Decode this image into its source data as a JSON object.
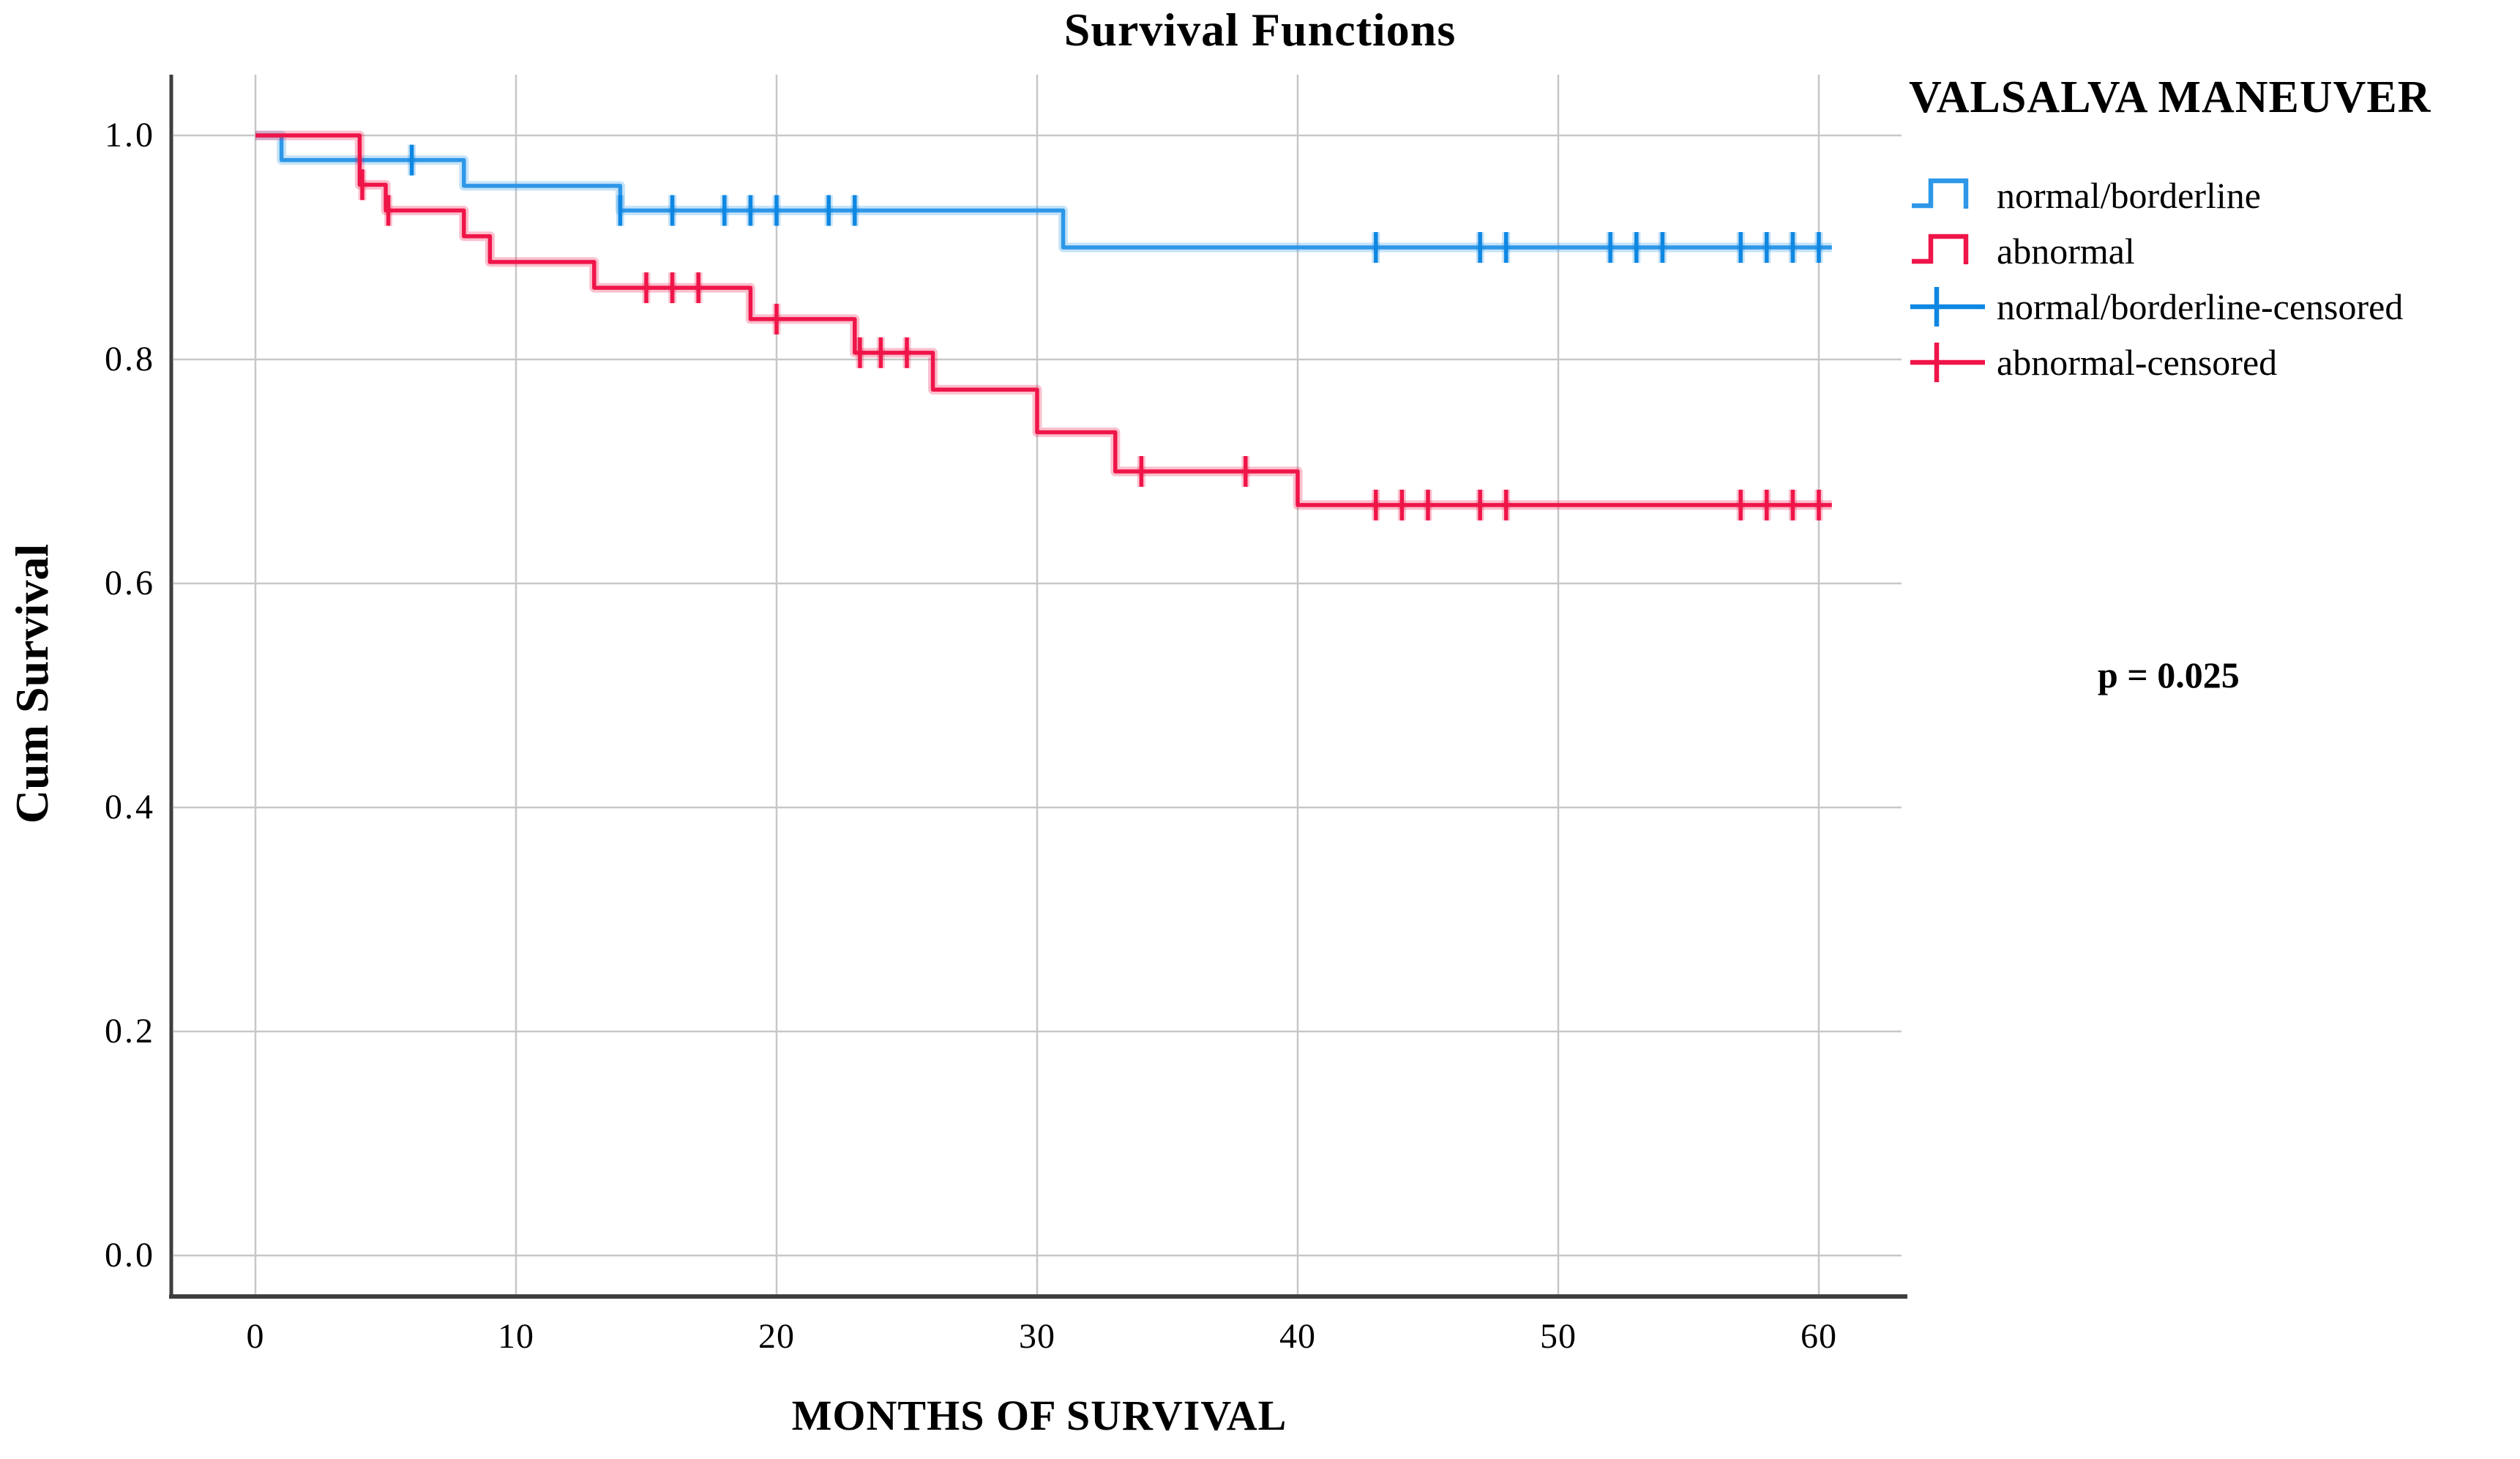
{
  "figure": {
    "title": "Survival Functions",
    "x_axis_title": "MONTHS OF SURVIVAL",
    "y_axis_title": "Cum Survival",
    "p_value_label": "p = 0.025"
  },
  "legend": {
    "title": "VALSALVA MANEUVER",
    "items": [
      {
        "label": "normal/borderline",
        "symbol": "step-line",
        "color": "#2d97e8"
      },
      {
        "label": "abnormal",
        "symbol": "step-line",
        "color": "#ef1549"
      },
      {
        "label": "normal/borderline-censored",
        "symbol": "plus-cross",
        "color": "#0e87e2"
      },
      {
        "label": "abnormal-censored",
        "symbol": "plus-cross",
        "color": "#ef1549"
      }
    ]
  },
  "chart_data": {
    "type": "line",
    "subtype": "kaplan-meier-step",
    "title": "Survival Functions",
    "xlabel": "MONTHS OF SURVIVAL",
    "ylabel": "Cum Survival",
    "xlim": [
      0,
      60
    ],
    "ylim": [
      0.0,
      1.0
    ],
    "x_ticks": [
      0,
      10,
      20,
      30,
      40,
      50,
      60
    ],
    "x_tick_labels": [
      "0",
      "10",
      "20",
      "30",
      "40",
      "50",
      "60"
    ],
    "y_ticks": [
      0.0,
      0.2,
      0.4,
      0.6,
      0.8,
      1.0
    ],
    "y_tick_labels": [
      "0.0",
      "0.2",
      "0.4",
      "0.6",
      "0.8",
      "1.0"
    ],
    "grid": true,
    "legend_position": "right",
    "annotations": [
      {
        "text": "p = 0.025",
        "x": 48,
        "y": 0.52
      }
    ],
    "grid_color": "#c7c7c7",
    "axis_color": "#3e3e3e",
    "series": [
      {
        "name": "normal/borderline",
        "color": "#2d97e8",
        "censor_color": "#0e87e2",
        "steps": [
          [
            0,
            1.0
          ],
          [
            1,
            0.978
          ],
          [
            8,
            0.955
          ],
          [
            14,
            0.933
          ],
          [
            31,
            0.9
          ]
        ],
        "end_x": 60.5,
        "censored": [
          [
            6,
            0.978
          ],
          [
            14,
            0.933
          ],
          [
            16,
            0.933
          ],
          [
            18,
            0.933
          ],
          [
            19,
            0.933
          ],
          [
            20,
            0.933
          ],
          [
            22,
            0.933
          ],
          [
            23,
            0.933
          ],
          [
            43,
            0.9
          ],
          [
            47,
            0.9
          ],
          [
            48,
            0.9
          ],
          [
            52,
            0.9
          ],
          [
            53,
            0.9
          ],
          [
            54,
            0.9
          ],
          [
            57,
            0.9
          ],
          [
            58,
            0.9
          ],
          [
            59,
            0.9
          ],
          [
            60,
            0.9
          ]
        ]
      },
      {
        "name": "abnormal",
        "color": "#ef1549",
        "censor_color": "#ef1549",
        "steps": [
          [
            0,
            1.0
          ],
          [
            4,
            0.956
          ],
          [
            5,
            0.933
          ],
          [
            8,
            0.91
          ],
          [
            9,
            0.887
          ],
          [
            13,
            0.864
          ],
          [
            19,
            0.836
          ],
          [
            23,
            0.806
          ],
          [
            26,
            0.773
          ],
          [
            30,
            0.735
          ],
          [
            33,
            0.7
          ],
          [
            40,
            0.67
          ]
        ],
        "end_x": 60.5,
        "censored": [
          [
            4.1,
            0.956
          ],
          [
            5.1,
            0.933
          ],
          [
            15,
            0.864
          ],
          [
            16,
            0.864
          ],
          [
            17,
            0.864
          ],
          [
            20,
            0.836
          ],
          [
            23.2,
            0.806
          ],
          [
            24,
            0.806
          ],
          [
            25,
            0.806
          ],
          [
            34,
            0.7
          ],
          [
            38,
            0.7
          ],
          [
            43,
            0.67
          ],
          [
            44,
            0.67
          ],
          [
            45,
            0.67
          ],
          [
            47,
            0.67
          ],
          [
            48,
            0.67
          ],
          [
            57,
            0.67
          ],
          [
            58,
            0.67
          ],
          [
            59,
            0.67
          ],
          [
            60,
            0.67
          ]
        ]
      }
    ]
  }
}
